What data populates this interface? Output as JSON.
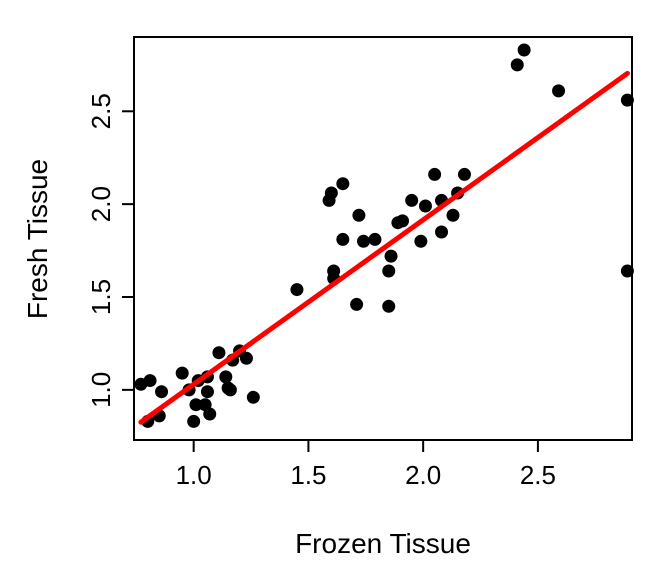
{
  "chart_data": {
    "type": "scatter",
    "xlabel": "Frozen Tissue",
    "ylabel": "Fresh Tissue",
    "xlim": [
      0.74,
      2.91
    ],
    "ylim": [
      0.73,
      2.9
    ],
    "x_ticks": [
      1.0,
      1.5,
      2.0,
      2.5
    ],
    "x_tick_labels": [
      "1.0",
      "1.5",
      "2.0",
      "2.5"
    ],
    "y_ticks": [
      1.0,
      1.5,
      2.0,
      2.5
    ],
    "y_tick_labels": [
      "1.0",
      "1.5",
      "2.0",
      "2.5"
    ],
    "grid": false,
    "legend": "none",
    "colors": {
      "points": "#000000",
      "fit_line": "#ff0000",
      "axis": "#000000"
    },
    "series": [
      {
        "kind": "points",
        "points": [
          [
            0.77,
            1.03
          ],
          [
            0.8,
            0.83
          ],
          [
            0.81,
            1.05
          ],
          [
            0.85,
            0.86
          ],
          [
            0.86,
            0.99
          ],
          [
            0.95,
            1.09
          ],
          [
            0.98,
            1.0
          ],
          [
            1.0,
            0.83
          ],
          [
            1.01,
            0.92
          ],
          [
            1.02,
            1.05
          ],
          [
            1.05,
            0.92
          ],
          [
            1.06,
            1.07
          ],
          [
            1.06,
            0.99
          ],
          [
            1.07,
            0.87
          ],
          [
            1.11,
            1.2
          ],
          [
            1.14,
            1.07
          ],
          [
            1.15,
            1.01
          ],
          [
            1.16,
            1.0
          ],
          [
            1.17,
            1.16
          ],
          [
            1.2,
            1.21
          ],
          [
            1.23,
            1.17
          ],
          [
            1.26,
            0.96
          ],
          [
            1.45,
            1.54
          ],
          [
            1.59,
            2.02
          ],
          [
            1.6,
            2.06
          ],
          [
            1.61,
            1.6
          ],
          [
            1.61,
            1.64
          ],
          [
            1.65,
            2.11
          ],
          [
            1.65,
            1.81
          ],
          [
            1.71,
            1.46
          ],
          [
            1.72,
            1.94
          ],
          [
            1.74,
            1.8
          ],
          [
            1.79,
            1.81
          ],
          [
            1.85,
            1.45
          ],
          [
            1.85,
            1.64
          ],
          [
            1.86,
            1.72
          ],
          [
            1.89,
            1.9
          ],
          [
            1.91,
            1.91
          ],
          [
            1.95,
            2.02
          ],
          [
            1.99,
            1.8
          ],
          [
            2.01,
            1.99
          ],
          [
            2.05,
            2.16
          ],
          [
            2.08,
            1.85
          ],
          [
            2.08,
            2.02
          ],
          [
            2.13,
            1.94
          ],
          [
            2.15,
            2.06
          ],
          [
            2.18,
            2.16
          ],
          [
            2.41,
            2.75
          ],
          [
            2.44,
            2.83
          ],
          [
            2.59,
            2.61
          ],
          [
            2.89,
            2.56
          ],
          [
            2.89,
            1.64
          ]
        ]
      },
      {
        "kind": "fit-line",
        "x": [
          0.77,
          2.89
        ],
        "y": [
          0.826,
          2.704
        ]
      }
    ]
  }
}
